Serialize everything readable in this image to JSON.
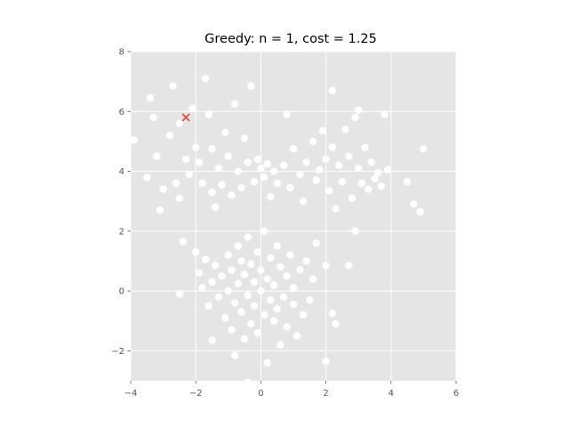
{
  "chart_data": {
    "type": "scatter",
    "title": "Greedy: n = 1, cost = 1.25",
    "xlim": [
      -4,
      6
    ],
    "ylim": [
      -3,
      8
    ],
    "xticks": [
      -4,
      -2,
      0,
      2,
      4,
      6
    ],
    "yticks": [
      -2,
      0,
      2,
      4,
      6,
      8
    ],
    "xtick_labels": [
      "−4",
      "−2",
      "0",
      "2",
      "4",
      "6"
    ],
    "ytick_labels": [
      "−2",
      "0",
      "2",
      "4",
      "6",
      "8"
    ],
    "grid": true,
    "background_color": "#e5e5e5",
    "grid_color": "#ffffff",
    "point_color": "#ffffff",
    "marker_color": "#e24a33",
    "selected_center": [
      -2.3,
      5.8
    ],
    "points": [
      [
        -3.9,
        5.05
      ],
      [
        -3.5,
        3.8
      ],
      [
        -3.4,
        6.45
      ],
      [
        -3.3,
        5.8
      ],
      [
        -3.2,
        4.5
      ],
      [
        -3.1,
        2.7
      ],
      [
        -3.0,
        3.4
      ],
      [
        -2.8,
        5.2
      ],
      [
        -2.7,
        6.85
      ],
      [
        -2.6,
        3.6
      ],
      [
        -2.5,
        3.1
      ],
      [
        -2.5,
        5.6
      ],
      [
        -2.3,
        4.4
      ],
      [
        -2.2,
        3.9
      ],
      [
        -2.1,
        6.1
      ],
      [
        -2.0,
        4.8
      ],
      [
        -1.9,
        4.3
      ],
      [
        -1.8,
        3.6
      ],
      [
        -1.7,
        7.1
      ],
      [
        -1.6,
        5.9
      ],
      [
        -1.5,
        4.75
      ],
      [
        -1.5,
        3.3
      ],
      [
        -1.4,
        2.8
      ],
      [
        -1.3,
        4.1
      ],
      [
        -1.2,
        3.55
      ],
      [
        -1.1,
        5.3
      ],
      [
        -1.0,
        4.5
      ],
      [
        -0.9,
        3.2
      ],
      [
        -0.8,
        6.25
      ],
      [
        -0.7,
        4.0
      ],
      [
        -0.6,
        3.45
      ],
      [
        -0.5,
        5.1
      ],
      [
        -0.4,
        4.3
      ],
      [
        -0.3,
        6.85
      ],
      [
        -0.2,
        3.65
      ],
      [
        -0.1,
        4.4
      ],
      [
        0.0,
        4.1
      ],
      [
        0.1,
        3.8
      ],
      [
        0.2,
        4.25
      ],
      [
        0.3,
        3.15
      ],
      [
        0.4,
        4.0
      ],
      [
        0.5,
        3.6
      ],
      [
        0.7,
        4.2
      ],
      [
        0.8,
        5.9
      ],
      [
        0.9,
        3.45
      ],
      [
        1.0,
        4.75
      ],
      [
        1.2,
        3.9
      ],
      [
        1.3,
        3.0
      ],
      [
        1.4,
        4.3
      ],
      [
        1.6,
        5.0
      ],
      [
        1.7,
        3.7
      ],
      [
        1.8,
        4.05
      ],
      [
        1.9,
        5.35
      ],
      [
        2.0,
        4.4
      ],
      [
        2.1,
        3.35
      ],
      [
        2.2,
        4.8
      ],
      [
        2.2,
        6.7
      ],
      [
        2.3,
        2.75
      ],
      [
        2.4,
        4.2
      ],
      [
        2.5,
        3.65
      ],
      [
        2.6,
        5.4
      ],
      [
        2.7,
        4.5
      ],
      [
        2.8,
        3.1
      ],
      [
        2.9,
        5.8
      ],
      [
        3.0,
        4.1
      ],
      [
        3.0,
        6.05
      ],
      [
        3.1,
        3.6
      ],
      [
        3.2,
        4.8
      ],
      [
        3.3,
        3.4
      ],
      [
        3.4,
        4.3
      ],
      [
        3.5,
        3.75
      ],
      [
        3.6,
        3.95
      ],
      [
        3.7,
        3.5
      ],
      [
        3.8,
        5.9
      ],
      [
        3.9,
        4.05
      ],
      [
        2.9,
        2.0
      ],
      [
        4.5,
        3.65
      ],
      [
        4.7,
        2.9
      ],
      [
        4.9,
        2.65
      ],
      [
        5.0,
        4.75
      ],
      [
        -2.4,
        1.65
      ],
      [
        -2.5,
        -0.1
      ],
      [
        -2.0,
        1.3
      ],
      [
        -1.9,
        0.6
      ],
      [
        -1.8,
        0.1
      ],
      [
        -1.7,
        1.05
      ],
      [
        -1.6,
        -0.5
      ],
      [
        -1.5,
        0.3
      ],
      [
        -1.5,
        -1.65
      ],
      [
        -1.4,
        0.85
      ],
      [
        -1.3,
        -0.2
      ],
      [
        -1.2,
        0.5
      ],
      [
        -1.1,
        -0.9
      ],
      [
        -1.0,
        1.2
      ],
      [
        -1.0,
        0.0
      ],
      [
        -0.9,
        -1.3
      ],
      [
        -0.9,
        0.7
      ],
      [
        -0.8,
        -0.4
      ],
      [
        -0.8,
        -2.15
      ],
      [
        -0.7,
        1.5
      ],
      [
        -0.7,
        0.25
      ],
      [
        -0.6,
        -0.7
      ],
      [
        -0.6,
        1.0
      ],
      [
        -0.5,
        -1.6
      ],
      [
        -0.5,
        0.55
      ],
      [
        -0.4,
        -0.15
      ],
      [
        -0.4,
        1.8
      ],
      [
        -0.3,
        0.9
      ],
      [
        -0.3,
        -1.1
      ],
      [
        -0.2,
        0.3
      ],
      [
        -0.2,
        -0.5
      ],
      [
        -0.1,
        1.3
      ],
      [
        -0.1,
        -1.4
      ],
      [
        0.0,
        0.0
      ],
      [
        0.0,
        0.7
      ],
      [
        0.1,
        -0.8
      ],
      [
        0.1,
        2.0
      ],
      [
        0.2,
        0.4
      ],
      [
        0.2,
        -2.4
      ],
      [
        0.3,
        -0.3
      ],
      [
        0.3,
        1.1
      ],
      [
        0.4,
        -1.0
      ],
      [
        0.4,
        0.2
      ],
      [
        0.5,
        -0.6
      ],
      [
        0.5,
        1.5
      ],
      [
        0.6,
        -1.8
      ],
      [
        0.6,
        0.8
      ],
      [
        0.7,
        -0.2
      ],
      [
        0.8,
        0.5
      ],
      [
        0.8,
        -1.2
      ],
      [
        0.9,
        1.2
      ],
      [
        1.0,
        -0.45
      ],
      [
        1.0,
        0.1
      ],
      [
        1.1,
        -1.5
      ],
      [
        1.2,
        0.7
      ],
      [
        1.3,
        -0.8
      ],
      [
        1.4,
        1.0
      ],
      [
        1.5,
        -0.3
      ],
      [
        1.6,
        0.4
      ],
      [
        1.7,
        1.6
      ],
      [
        2.0,
        0.85
      ],
      [
        2.0,
        -2.35
      ],
      [
        2.2,
        -0.75
      ],
      [
        2.3,
        -1.1
      ],
      [
        2.7,
        0.85
      ],
      [
        -0.4,
        -3.05
      ]
    ]
  }
}
